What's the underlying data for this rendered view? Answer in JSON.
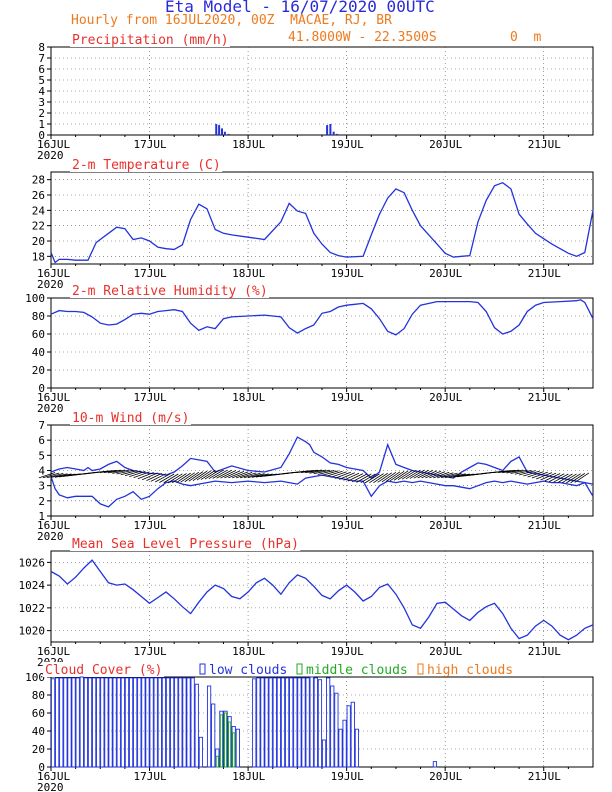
{
  "header": {
    "title": "Eta Model - 16/07/2020 00UTC",
    "subtitle": "Hourly from 16JUL2020, 00Z  MACAE, RJ, BR",
    "location": "41.8000W - 22.3500S",
    "elevation": "0  m"
  },
  "colors": {
    "title": "#2a2ad8",
    "orange": "#ee7a1e",
    "red": "#e8312c",
    "blue": "#2233dd",
    "green": "#22aa22",
    "black": "#000000"
  },
  "time_axis": {
    "hours": 132,
    "day_labels": [
      "16JUL",
      "17JUL",
      "18JUL",
      "19JUL",
      "20JUL",
      "21JUL"
    ],
    "year_label": "2020"
  },
  "chart_data": [
    {
      "type": "bar",
      "title": "Precipitation (mm/h)",
      "ylim": [
        0,
        8
      ],
      "yticks": [
        "0",
        "1",
        "2",
        "3",
        "4",
        "5",
        "6",
        "7",
        "8"
      ],
      "bars": [
        [
          40,
          1.0
        ],
        [
          40.7,
          0.9
        ],
        [
          41.4,
          0.6
        ],
        [
          42.1,
          0.3
        ],
        [
          43,
          0.1
        ],
        [
          67,
          0.9
        ],
        [
          67.8,
          1.0
        ],
        [
          68.6,
          0.3
        ],
        [
          69.4,
          0.1
        ]
      ]
    },
    {
      "type": "line",
      "title": "2-m Temperature (C)",
      "ylim": [
        17,
        29
      ],
      "yticks": [
        "18",
        "20",
        "22",
        "24",
        "26",
        "28"
      ],
      "series": [
        {
          "name": "temperature",
          "x": [
            0,
            1,
            2,
            4,
            6,
            9,
            11,
            14,
            16,
            18,
            20,
            22,
            24,
            26,
            28,
            30,
            32,
            34,
            36,
            38,
            40,
            42,
            44,
            48,
            52,
            56,
            58,
            60,
            62,
            64,
            66,
            68,
            70,
            72,
            76,
            78,
            80,
            82,
            84,
            86,
            88,
            90,
            92,
            94,
            96,
            98,
            100,
            102,
            104,
            106,
            108,
            110,
            112,
            114,
            116,
            118,
            120,
            122,
            124,
            126,
            128,
            130,
            132
          ],
          "y": [
            18.5,
            17.2,
            17.6,
            17.6,
            17.5,
            17.5,
            19.8,
            21.0,
            21.8,
            21.6,
            20.2,
            20.4,
            20.0,
            19.2,
            19.0,
            18.9,
            19.5,
            22.8,
            24.8,
            24.2,
            21.5,
            21.0,
            20.8,
            20.5,
            20.2,
            22.5,
            24.9,
            23.9,
            23.6,
            21.0,
            19.6,
            18.5,
            18.1,
            17.9,
            18.0,
            20.8,
            23.5,
            25.6,
            26.8,
            26.3,
            24.0,
            22.0,
            20.8,
            19.6,
            18.4,
            17.9,
            18.0,
            18.1,
            22.5,
            25.3,
            27.2,
            27.6,
            26.8,
            23.5,
            22.2,
            21.0,
            20.3,
            19.6,
            19.0,
            18.4,
            18.0,
            18.5,
            24.0
          ]
        }
      ]
    },
    {
      "type": "line",
      "title": "2-m Relative Humidity (%)",
      "ylim": [
        0,
        100
      ],
      "yticks": [
        "0",
        "20",
        "40",
        "60",
        "80",
        "100"
      ],
      "series": [
        {
          "name": "relative humidity",
          "x": [
            0,
            2,
            4,
            6,
            8,
            10,
            12,
            14,
            16,
            18,
            20,
            22,
            24,
            26,
            28,
            30,
            32,
            34,
            36,
            38,
            40,
            42,
            44,
            48,
            52,
            56,
            58,
            60,
            62,
            64,
            66,
            68,
            70,
            72,
            74,
            76,
            78,
            80,
            82,
            84,
            86,
            88,
            90,
            94,
            98,
            100,
            102,
            104,
            106,
            108,
            110,
            112,
            114,
            116,
            118,
            120,
            124,
            128,
            129,
            130,
            132
          ],
          "y": [
            82,
            86,
            85,
            85,
            84,
            79,
            72,
            70,
            71,
            76,
            82,
            83,
            82,
            85,
            86,
            87,
            85,
            72,
            64,
            68,
            66,
            77,
            79,
            80,
            81,
            79,
            67,
            61,
            66,
            70,
            83,
            85,
            90,
            92,
            93,
            94,
            88,
            77,
            63,
            59,
            66,
            82,
            92,
            96,
            96,
            96,
            96,
            95,
            85,
            67,
            60,
            63,
            70,
            85,
            92,
            95,
            96,
            97,
            98,
            95,
            77
          ]
        }
      ]
    },
    {
      "type": "line",
      "title": "10-m Wind (m/s)",
      "ylim": [
        1,
        7
      ],
      "yticks": [
        "1",
        "2",
        "3",
        "4",
        "5",
        "6",
        "7"
      ],
      "series": [
        {
          "name": "wind speed (upper)",
          "x": [
            0,
            2,
            4,
            6,
            8,
            9,
            10,
            12,
            14,
            16,
            18,
            20,
            22,
            24,
            26,
            28,
            30,
            32,
            34,
            36,
            38,
            40,
            44,
            48,
            52,
            56,
            58,
            60,
            62,
            63,
            64,
            66,
            68,
            70,
            72,
            74,
            76,
            78,
            80,
            82,
            84,
            86,
            88,
            90,
            92,
            94,
            96,
            98,
            100,
            102,
            104,
            106,
            108,
            110,
            112,
            114,
            116,
            118,
            120,
            122,
            124,
            126,
            128,
            130,
            132
          ],
          "y": [
            3.9,
            4.1,
            4.2,
            4.1,
            4.0,
            4.2,
            4.0,
            4.1,
            4.4,
            4.6,
            4.2,
            4.0,
            3.9,
            3.8,
            3.8,
            3.7,
            3.9,
            4.3,
            4.8,
            4.7,
            4.6,
            3.9,
            4.3,
            4.0,
            3.9,
            4.2,
            5.1,
            6.2,
            5.9,
            5.7,
            5.2,
            4.9,
            4.5,
            4.4,
            4.2,
            4.1,
            4.0,
            3.5,
            3.9,
            5.7,
            4.4,
            4.2,
            4.0,
            3.9,
            3.8,
            3.7,
            3.6,
            3.5,
            3.9,
            4.2,
            4.5,
            4.4,
            4.2,
            4.0,
            4.6,
            4.9,
            3.9,
            3.8,
            3.7,
            3.6,
            3.5,
            3.4,
            3.3,
            3.2,
            3.1
          ]
        },
        {
          "name": "wind speed (lower)",
          "x": [
            0,
            1,
            2,
            4,
            6,
            8,
            10,
            12,
            14,
            16,
            18,
            20,
            22,
            24,
            26,
            28,
            30,
            32,
            34,
            36,
            38,
            40,
            44,
            48,
            52,
            56,
            58,
            60,
            62,
            64,
            66,
            68,
            70,
            72,
            74,
            76,
            78,
            80,
            82,
            84,
            86,
            88,
            90,
            92,
            94,
            96,
            98,
            100,
            102,
            104,
            106,
            108,
            110,
            112,
            114,
            116,
            118,
            120,
            122,
            124,
            126,
            128,
            130,
            132
          ],
          "y": [
            3.6,
            2.8,
            2.4,
            2.2,
            2.3,
            2.3,
            2.3,
            1.8,
            1.6,
            2.1,
            2.3,
            2.6,
            2.1,
            2.3,
            2.8,
            3.2,
            3.3,
            3.1,
            3.0,
            3.1,
            3.2,
            3.3,
            3.2,
            3.3,
            3.2,
            3.3,
            3.2,
            3.1,
            3.5,
            3.6,
            3.7,
            3.6,
            3.5,
            3.4,
            3.3,
            3.3,
            2.3,
            3.0,
            3.3,
            3.2,
            3.3,
            3.2,
            3.3,
            3.2,
            3.1,
            3.0,
            3.0,
            2.9,
            2.8,
            3.0,
            3.2,
            3.3,
            3.2,
            3.3,
            3.2,
            3.1,
            3.2,
            3.3,
            3.2,
            3.2,
            3.1,
            3.0,
            3.2,
            2.3
          ]
        }
      ]
    },
    {
      "type": "line",
      "title": "Mean Sea Level Pressure (hPa)",
      "ylim": [
        1019,
        1027
      ],
      "yticks": [
        "1020",
        "1022",
        "1024",
        "1026"
      ],
      "series": [
        {
          "name": "pressure",
          "x": [
            0,
            2,
            4,
            6,
            8,
            10,
            12,
            14,
            16,
            18,
            20,
            22,
            24,
            26,
            28,
            30,
            32,
            34,
            36,
            38,
            40,
            42,
            44,
            46,
            48,
            50,
            52,
            54,
            56,
            58,
            60,
            62,
            64,
            66,
            68,
            70,
            72,
            74,
            76,
            78,
            80,
            82,
            84,
            86,
            88,
            90,
            92,
            94,
            96,
            98,
            100,
            102,
            104,
            106,
            108,
            110,
            112,
            114,
            116,
            118,
            120,
            122,
            124,
            126,
            128,
            130,
            132
          ],
          "y": [
            1025.2,
            1024.8,
            1024.1,
            1024.7,
            1025.5,
            1026.2,
            1025.2,
            1024.2,
            1024.0,
            1024.1,
            1023.6,
            1023.0,
            1022.4,
            1022.9,
            1023.4,
            1022.8,
            1022.1,
            1021.5,
            1022.5,
            1023.4,
            1024.0,
            1023.7,
            1023.0,
            1022.8,
            1023.4,
            1024.2,
            1024.6,
            1024.0,
            1023.2,
            1024.2,
            1024.9,
            1024.6,
            1023.9,
            1023.1,
            1022.8,
            1023.5,
            1024.0,
            1023.4,
            1022.6,
            1023.0,
            1023.8,
            1024.1,
            1023.2,
            1022.0,
            1020.5,
            1020.2,
            1021.2,
            1022.4,
            1022.5,
            1021.9,
            1021.3,
            1020.9,
            1021.6,
            1022.1,
            1022.4,
            1021.5,
            1020.2,
            1019.3,
            1019.6,
            1020.4,
            1020.9,
            1020.4,
            1019.6,
            1019.2,
            1019.6,
            1020.2,
            1020.5
          ]
        }
      ]
    },
    {
      "type": "bar",
      "title": "Cloud Cover (%)",
      "legend": [
        "low clouds",
        "middle clouds",
        "high clouds"
      ],
      "ylim": [
        0,
        100
      ],
      "yticks": [
        "0",
        "20",
        "40",
        "60",
        "80",
        "100"
      ],
      "low_hours": [
        1,
        2,
        3,
        4,
        5,
        6,
        7,
        8,
        9,
        10,
        11,
        12,
        13,
        14,
        15,
        16,
        17,
        18,
        19,
        20,
        21,
        22,
        23,
        24,
        25,
        26,
        27,
        28,
        29,
        30,
        31,
        32,
        33,
        34,
        35,
        36,
        37,
        38,
        39,
        40,
        41,
        42,
        43,
        44,
        45,
        46,
        47,
        48,
        49,
        50,
        51,
        52,
        53,
        54,
        55,
        56,
        57,
        58,
        59,
        60,
        61,
        62,
        63,
        64,
        65,
        66,
        67,
        68,
        69,
        70,
        71,
        72,
        73,
        74,
        75,
        76,
        77,
        78,
        79,
        80,
        81,
        82,
        83,
        84,
        85,
        86,
        87,
        88,
        89,
        90,
        91,
        92,
        93,
        94,
        95,
        96,
        97,
        98,
        99,
        100,
        101,
        102,
        103,
        104,
        105,
        106,
        107,
        108,
        109,
        110,
        111,
        112,
        113,
        114,
        115,
        116,
        117,
        118,
        119,
        120,
        121,
        122,
        123,
        124,
        125,
        126,
        127,
        128,
        129,
        130,
        131,
        132
      ],
      "low_values": [
        98,
        99,
        99,
        99,
        99,
        99,
        99,
        100,
        99,
        99,
        99,
        99,
        99,
        99,
        99,
        99,
        99,
        99,
        99,
        99,
        99,
        99,
        99,
        99,
        99,
        99,
        99,
        99,
        99,
        99,
        99,
        99,
        99,
        99,
        99,
        92,
        33,
        0,
        90,
        70,
        20,
        62,
        62,
        56,
        45,
        42,
        0,
        0,
        0,
        98,
        99,
        99,
        99,
        99,
        99,
        99,
        99,
        99,
        99,
        99,
        99,
        99,
        99,
        100,
        99,
        97,
        30,
        99,
        90,
        82,
        42,
        52,
        68,
        72,
        42,
        0,
        0,
        0,
        0,
        0,
        0,
        0,
        0,
        0,
        0,
        0,
        0,
        0,
        0,
        0,
        0,
        0,
        0,
        6,
        0,
        0,
        0,
        0,
        0,
        0,
        0,
        0,
        0,
        0,
        0,
        0,
        0,
        0,
        0,
        0,
        0,
        0,
        0,
        0,
        0,
        0,
        0,
        0,
        0,
        0,
        0,
        0,
        0,
        0,
        0,
        0,
        0,
        0,
        0,
        0,
        0,
        0
      ],
      "middle_hours": [
        41,
        42,
        43,
        44,
        45
      ],
      "middle_values": [
        12,
        58,
        60,
        50,
        38
      ]
    }
  ]
}
